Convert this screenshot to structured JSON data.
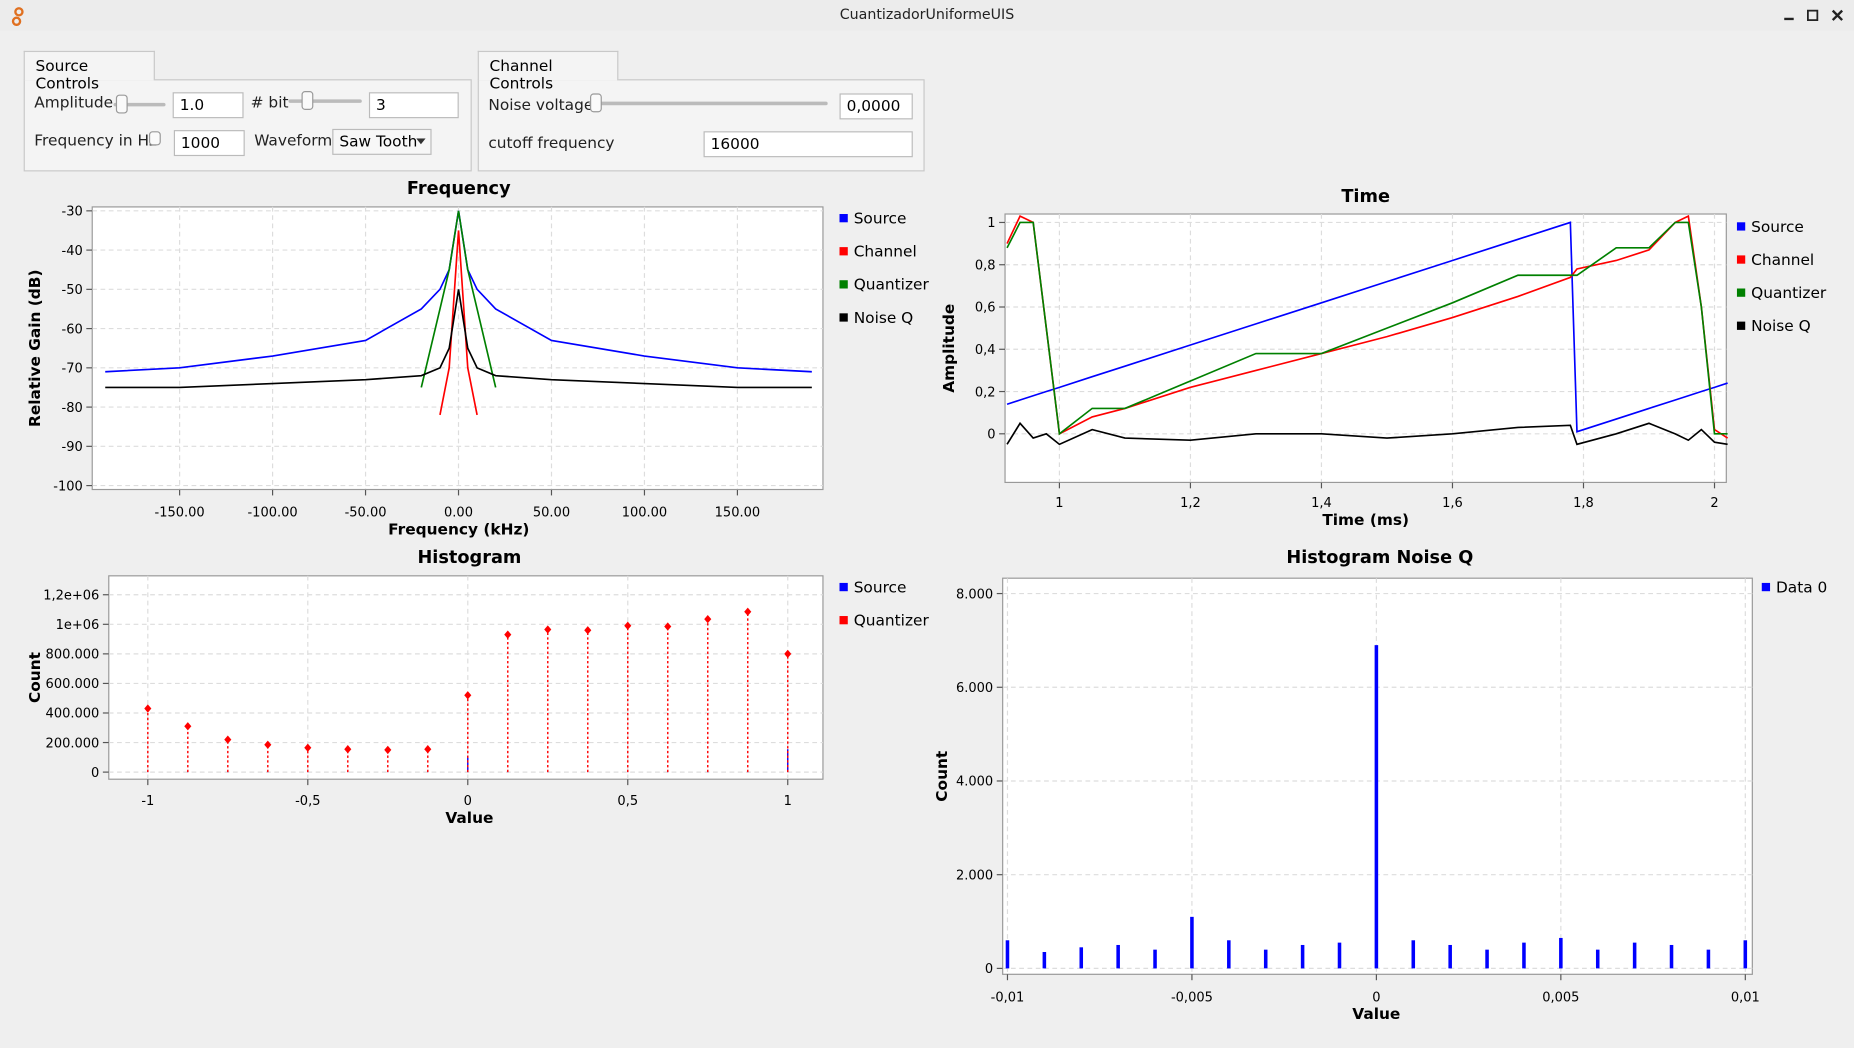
{
  "window": {
    "title": "CuantizadorUniformeUIS"
  },
  "source_controls": {
    "tab": "Source Controls",
    "amplitude_label": "Amplitude",
    "amplitude": "1.0",
    "bit_label": "# bit",
    "bit": "3",
    "frequency_label": "Frequency in Hz",
    "frequency": "1000",
    "waveform_label": "Waveform:",
    "waveform": "Saw Tooth"
  },
  "channel_controls": {
    "tab": "Channel Controls",
    "noise_label": "Noise voltage",
    "noise": "0,0000",
    "cutoff_label": "cutoff frequency",
    "cutoff": "16000"
  },
  "chart_data": [
    {
      "type": "line",
      "title": "Frequency",
      "x_label": "Frequency (kHz)",
      "y_label": "Relative Gain (dB)",
      "grid": true,
      "xlim": [
        -197,
        196
      ],
      "ylim": [
        -101,
        -29
      ],
      "xticks": [
        {
          "value": -150,
          "label": "-150.00"
        },
        {
          "value": -100,
          "label": "-100.00"
        },
        {
          "value": -50,
          "label": "-50.00"
        },
        {
          "value": 0,
          "label": "0.00"
        },
        {
          "value": 50,
          "label": "50.00"
        },
        {
          "value": 100,
          "label": "100.00"
        },
        {
          "value": 150,
          "label": "150.00"
        }
      ],
      "yticks": [
        -100,
        -90,
        -80,
        -70,
        -60,
        -50,
        -40,
        -30
      ],
      "x": [
        -190,
        -150,
        -100,
        -50,
        -20,
        -10,
        -5,
        0,
        5,
        10,
        20,
        50,
        100,
        150,
        190
      ],
      "series": [
        {
          "name": "Source",
          "color": "#0000ff",
          "values": [
            -71,
            -70,
            -67,
            -63,
            -55,
            -50,
            -45,
            -30,
            -45,
            -50,
            -55,
            -63,
            -67,
            -70,
            -71
          ]
        },
        {
          "name": "Channel",
          "color": "#ff0000",
          "values": [
            null,
            null,
            null,
            null,
            null,
            -82,
            -70,
            -35,
            -70,
            -82,
            null,
            null,
            null,
            null,
            null
          ]
        },
        {
          "name": "Quantizer",
          "color": "#008000",
          "values": [
            null,
            null,
            null,
            null,
            -75,
            -55,
            -45,
            -30,
            -45,
            -55,
            -75,
            null,
            null,
            null,
            null
          ]
        },
        {
          "name": "Noise Q",
          "color": "#000000",
          "values": [
            -75,
            -75,
            -74,
            -73,
            -72,
            -70,
            -65,
            -50,
            -65,
            -70,
            -72,
            -73,
            -74,
            -75,
            -75
          ]
        }
      ]
    },
    {
      "type": "line",
      "title": "Time",
      "x_label": "Time (ms)",
      "y_label": "Amplitude",
      "grid": true,
      "xlim": [
        0.917,
        2.018
      ],
      "ylim": [
        -0.23,
        1.04
      ],
      "xticks": [
        1,
        {
          "value": 1.2,
          "label": "1,2"
        },
        {
          "value": 1.4,
          "label": "1,4"
        },
        {
          "value": 1.6,
          "label": "1,6"
        },
        {
          "value": 1.8,
          "label": "1,8"
        },
        2
      ],
      "yticks": [
        0,
        {
          "value": 0.2,
          "label": "0,2"
        },
        {
          "value": 0.4,
          "label": "0,4"
        },
        {
          "value": 0.6,
          "label": "0,6"
        },
        {
          "value": 0.8,
          "label": "0,8"
        },
        1
      ],
      "x": [
        0.92,
        0.94,
        0.96,
        0.98,
        1.0,
        1.05,
        1.1,
        1.2,
        1.3,
        1.4,
        1.5,
        1.6,
        1.7,
        1.78,
        1.79,
        1.85,
        1.9,
        1.94,
        1.96,
        1.98,
        2.0,
        2.02
      ],
      "series": [
        {
          "name": "Source",
          "color": "#0000ff",
          "values": [
            0.14,
            0.16,
            0.18,
            0.2,
            0.22,
            0.27,
            0.32,
            0.42,
            0.52,
            0.62,
            0.72,
            0.82,
            0.92,
            1.0,
            0.01,
            0.07,
            0.12,
            0.16,
            0.18,
            0.2,
            0.22,
            0.24
          ]
        },
        {
          "name": "Channel",
          "color": "#ff0000",
          "values": [
            0.9,
            1.03,
            1.0,
            0.5,
            0.0,
            0.08,
            0.12,
            0.22,
            0.3,
            0.38,
            0.46,
            0.55,
            0.65,
            0.74,
            0.78,
            0.82,
            0.87,
            1.0,
            1.03,
            0.6,
            0.02,
            -0.02
          ]
        },
        {
          "name": "Quantizer",
          "color": "#008000",
          "values": [
            0.88,
            1.0,
            1.0,
            0.5,
            0.0,
            0.12,
            0.12,
            0.25,
            0.38,
            0.38,
            0.5,
            0.62,
            0.75,
            0.75,
            0.75,
            0.88,
            0.88,
            1.0,
            1.0,
            0.6,
            0.0,
            0.0
          ]
        },
        {
          "name": "Noise Q",
          "color": "#000000",
          "values": [
            -0.05,
            0.05,
            -0.02,
            0.0,
            -0.05,
            0.02,
            -0.02,
            -0.03,
            0.0,
            0.0,
            -0.02,
            0.0,
            0.03,
            0.04,
            -0.05,
            0.0,
            0.05,
            0.0,
            -0.03,
            0.02,
            -0.04,
            -0.05
          ]
        }
      ]
    },
    {
      "type": "stem",
      "title": "Histogram",
      "x_label": "Value",
      "y_label": "Count",
      "grid": true,
      "xlim": [
        -1.122,
        1.11
      ],
      "ylim": [
        -48000,
        1328000
      ],
      "xticks": [
        -1,
        {
          "value": -0.5,
          "label": "-0,5"
        },
        0,
        {
          "value": 0.5,
          "label": "0,5"
        },
        1
      ],
      "yticks": [
        0,
        {
          "value": 200000,
          "label": "200.000"
        },
        {
          "value": 400000,
          "label": "400.000"
        },
        {
          "value": 600000,
          "label": "600.000"
        },
        {
          "value": 800000,
          "label": "800.000"
        },
        {
          "value": 1000000,
          "label": "1e+06"
        },
        {
          "value": 1200000,
          "label": "1,2e+06"
        }
      ],
      "x": [
        -1,
        -0.875,
        -0.75,
        -0.625,
        -0.5,
        -0.375,
        -0.25,
        -0.125,
        0,
        0.125,
        0.25,
        0.375,
        0.5,
        0.625,
        0.75,
        0.875,
        1
      ],
      "series": [
        {
          "name": "Source",
          "color": "#0000ff",
          "values": [
            5000,
            5000,
            5000,
            5000,
            5000,
            5000,
            5000,
            5000,
            110000,
            5000,
            5000,
            5000,
            5000,
            5000,
            5000,
            5000,
            155000
          ]
        },
        {
          "name": "Quantizer",
          "color": "#ff0000",
          "marker": "diamond",
          "line_style": "dotted",
          "values": [
            430000,
            310000,
            220000,
            185000,
            165000,
            155000,
            150000,
            155000,
            520000,
            930000,
            965000,
            960000,
            990000,
            985000,
            1035000,
            1085000,
            800000
          ]
        }
      ]
    },
    {
      "type": "stem",
      "title": "Histogram Noise Q",
      "x_label": "Value",
      "y_label": "Count",
      "grid": true,
      "xlim": [
        -0.01013,
        0.01019
      ],
      "ylim": [
        -126,
        8328
      ],
      "xticks": [
        {
          "value": -0.01,
          "label": "-0,01"
        },
        {
          "value": -0.005,
          "label": "-0,005"
        },
        0,
        {
          "value": 0.005,
          "label": "0,005"
        },
        {
          "value": 0.01,
          "label": "0,01"
        }
      ],
      "yticks": [
        0,
        {
          "value": 2000,
          "label": "2.000"
        },
        {
          "value": 4000,
          "label": "4.000"
        },
        {
          "value": 6000,
          "label": "6.000"
        },
        {
          "value": 8000,
          "label": "8.000"
        }
      ],
      "x": [
        -0.01,
        -0.009,
        -0.008,
        -0.007,
        -0.006,
        -0.005,
        -0.004,
        -0.003,
        -0.002,
        -0.001,
        0,
        0.001,
        0.002,
        0.003,
        0.004,
        0.005,
        0.006,
        0.007,
        0.008,
        0.009,
        0.01
      ],
      "series": [
        {
          "name": "Data 0",
          "color": "#0000ff",
          "values": [
            600,
            350,
            450,
            500,
            400,
            1100,
            600,
            400,
            500,
            550,
            6900,
            600,
            500,
            400,
            550,
            650,
            400,
            550,
            500,
            400,
            600
          ]
        }
      ]
    }
  ]
}
